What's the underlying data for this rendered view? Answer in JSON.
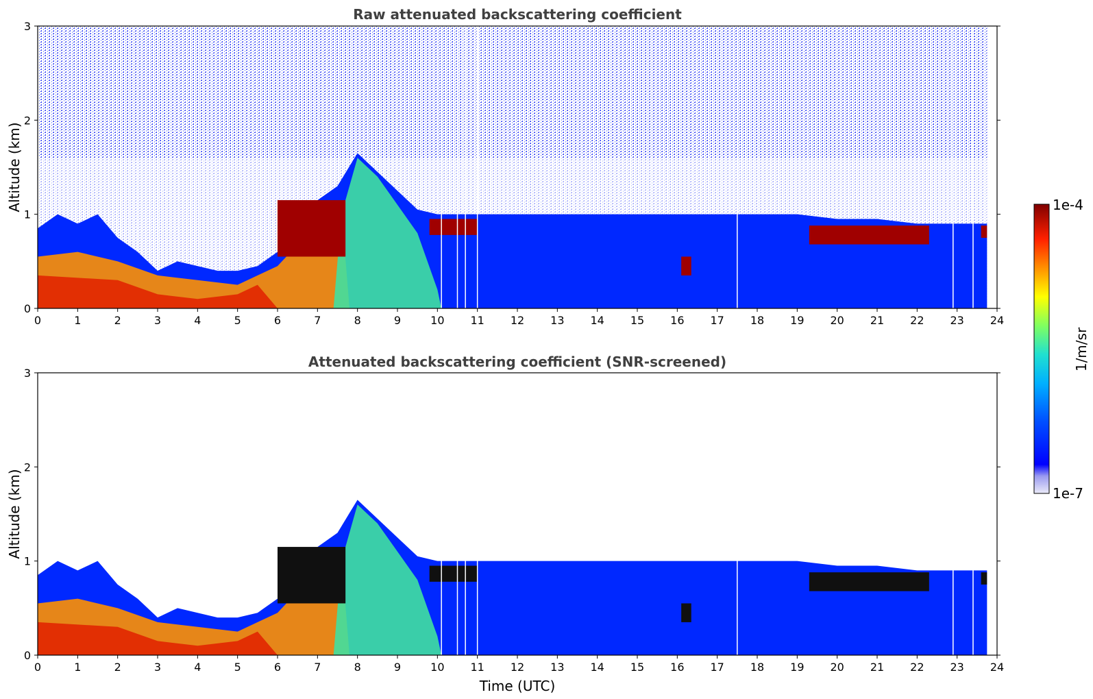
{
  "chart_data": [
    {
      "type": "heatmap",
      "title": "Raw attenuated backscattering coefficient",
      "xlabel": "",
      "ylabel": "Altitude (km)",
      "xlim": [
        0,
        24
      ],
      "ylim": [
        0,
        3
      ],
      "x_ticks": [
        "0",
        "1",
        "2",
        "3",
        "4",
        "5",
        "6",
        "7",
        "8",
        "9",
        "10",
        "11",
        "12",
        "13",
        "14",
        "15",
        "16",
        "17",
        "18",
        "19",
        "20",
        "21",
        "22",
        "23",
        "24"
      ],
      "y_ticks": [
        "0",
        "1",
        "2",
        "3"
      ],
      "layer_top_km": [
        [
          0,
          0.85
        ],
        [
          0.5,
          1.0
        ],
        [
          1,
          0.9
        ],
        [
          1.5,
          1.0
        ],
        [
          2,
          0.75
        ],
        [
          2.5,
          0.6
        ],
        [
          3,
          0.4
        ],
        [
          3.5,
          0.5
        ],
        [
          4,
          0.45
        ],
        [
          4.5,
          0.4
        ],
        [
          5,
          0.4
        ],
        [
          5.5,
          0.45
        ],
        [
          6,
          0.6
        ],
        [
          6.5,
          0.8
        ],
        [
          7,
          1.15
        ],
        [
          7.5,
          1.3
        ],
        [
          8,
          1.65
        ],
        [
          8.5,
          1.45
        ],
        [
          9,
          1.25
        ],
        [
          9.5,
          1.05
        ],
        [
          10,
          1.0
        ],
        [
          11,
          1.0
        ],
        [
          12,
          1.0
        ],
        [
          13,
          1.0
        ],
        [
          14,
          1.0
        ],
        [
          15,
          1.0
        ],
        [
          16,
          1.0
        ],
        [
          17,
          1.0
        ],
        [
          18,
          1.0
        ],
        [
          19,
          1.0
        ],
        [
          20,
          0.95
        ],
        [
          21,
          0.95
        ],
        [
          22,
          0.9
        ],
        [
          23,
          0.9
        ],
        [
          23.75,
          0.9
        ]
      ],
      "cloud_layers_km": [
        {
          "x0": 6.0,
          "x1": 7.7,
          "bottom": 0.55,
          "top": 1.15
        },
        {
          "x0": 9.8,
          "x1": 11.0,
          "bottom": 0.78,
          "top": 0.95
        },
        {
          "x0": 19.3,
          "x1": 22.3,
          "bottom": 0.68,
          "top": 0.88
        },
        {
          "x0": 16.1,
          "x1": 16.35,
          "bottom": 0.35,
          "top": 0.55
        },
        {
          "x0": 23.6,
          "x1": 23.75,
          "bottom": 0.75,
          "top": 0.88
        }
      ]
    },
    {
      "type": "heatmap",
      "title": "Attenuated backscattering coefficient (SNR-screened)",
      "xlabel": "Time (UTC)",
      "ylabel": "Altitude (km)",
      "xlim": [
        0,
        24
      ],
      "ylim": [
        0,
        3
      ],
      "x_ticks": [
        "0",
        "1",
        "2",
        "3",
        "4",
        "5",
        "6",
        "7",
        "8",
        "9",
        "10",
        "11",
        "12",
        "13",
        "14",
        "15",
        "16",
        "17",
        "18",
        "19",
        "20",
        "21",
        "22",
        "23",
        "24"
      ],
      "y_ticks": [
        "0",
        "1",
        "2",
        "3"
      ]
    }
  ],
  "colorbar": {
    "label": "1/m/sr",
    "max_label": "1e-4",
    "min_label": "1e-7",
    "colors": [
      "#e8e8f8",
      "#c8c8f0",
      "#8080f0",
      "#0000ff",
      "#0040ff",
      "#0080ff",
      "#00c0ff",
      "#00e0e0",
      "#40ff80",
      "#a0ff40",
      "#ffff00",
      "#ffc000",
      "#ff8000",
      "#ff4000",
      "#e00000",
      "#800000"
    ]
  }
}
